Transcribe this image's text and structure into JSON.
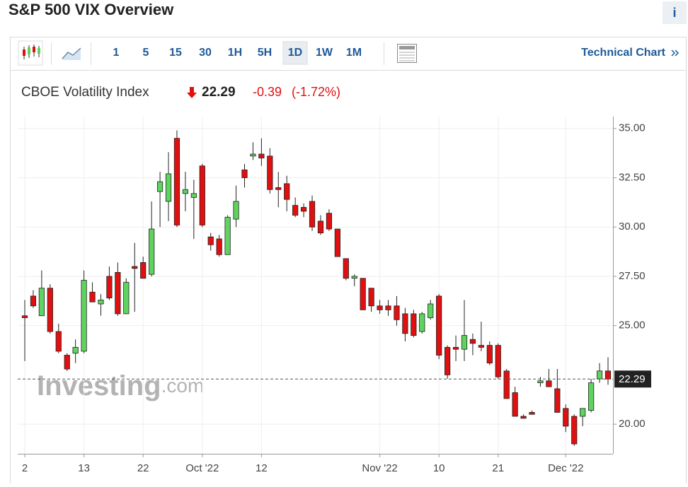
{
  "page": {
    "title": "S&P 500 VIX Overview",
    "info": "i",
    "intervals": [
      "1",
      "5",
      "15",
      "30",
      "1H",
      "5H",
      "1D",
      "1W",
      "1M"
    ],
    "active_interval": 6,
    "technical_link": "Technical Chart"
  },
  "quote": {
    "name": "CBOE Volatility Index",
    "price": 22.29,
    "change": -0.39,
    "change_pct": "(-1.72%)"
  },
  "chart_data": {
    "type": "candlestick",
    "watermark": {
      "brand": "Investing",
      "suffix": ".com"
    },
    "up_color": "#5fd35f",
    "down_color": "#e01010",
    "grid": true,
    "ylim": [
      18.5,
      35.6
    ],
    "yticks": [
      {
        "value": 20,
        "label": "20.00"
      },
      {
        "value": 25,
        "label": "25.00"
      },
      {
        "value": 27.5,
        "label": "27.50"
      },
      {
        "value": 30,
        "label": "30.00"
      },
      {
        "value": 32.5,
        "label": "32.50"
      },
      {
        "value": 35,
        "label": "35.00"
      }
    ],
    "categories": [
      "2",
      null,
      null,
      null,
      null,
      null,
      null,
      "13",
      null,
      null,
      null,
      null,
      null,
      null,
      "22",
      null,
      null,
      null,
      null,
      null,
      null,
      "Oct '22",
      null,
      null,
      null,
      null,
      null,
      null,
      "12",
      null,
      null,
      null,
      null,
      null,
      null,
      null,
      null,
      null,
      null,
      null,
      null,
      null,
      "Nov '22",
      null,
      null,
      null,
      null,
      null,
      null,
      "10",
      null,
      null,
      null,
      null,
      null,
      null,
      "21",
      null,
      null,
      null,
      null,
      null,
      null,
      null,
      "Dec '22",
      null,
      null,
      null,
      null,
      null
    ],
    "open": [
      25.5,
      26.5,
      25.5,
      26.9,
      24.7,
      23.5,
      23.6,
      23.7,
      26.7,
      26.1,
      27.5,
      27.7,
      25.6,
      28.0,
      28.2,
      27.6,
      31.8,
      31.3,
      34.5,
      31.7,
      31.5,
      33.1,
      29.5,
      29.4,
      28.6,
      30.4,
      32.9,
      33.6,
      33.7,
      33.6,
      32.0,
      32.2,
      31.1,
      31.0,
      31.3,
      30.3,
      30.7,
      29.9,
      28.4,
      27.4,
      27.4,
      26.9,
      26.0,
      26.0,
      26.0,
      25.6,
      25.6,
      24.7,
      25.4,
      26.5,
      23.9,
      23.9,
      23.8,
      24.3,
      24.0,
      24.0,
      24.0,
      22.7,
      21.6,
      20.4,
      20.6,
      22.1,
      22.2,
      21.8,
      20.8,
      20.4,
      20.4,
      20.7,
      22.3,
      22.7
    ],
    "high": [
      26.3,
      26.8,
      27.8,
      27.1,
      25.1,
      23.6,
      24.3,
      27.8,
      27.2,
      26.6,
      28.0,
      28.2,
      27.4,
      29.2,
      28.5,
      31.3,
      32.8,
      33.8,
      34.9,
      32.8,
      32.4,
      33.2,
      29.7,
      29.6,
      30.6,
      32.1,
      33.2,
      34.3,
      34.5,
      34.0,
      32.8,
      32.6,
      31.5,
      31.2,
      31.6,
      30.6,
      30.9,
      29.9,
      28.4,
      27.6,
      27.4,
      26.9,
      26.3,
      26.3,
      26.5,
      25.9,
      25.8,
      25.7,
      26.3,
      26.6,
      24.0,
      24.5,
      26.3,
      24.6,
      25.2,
      24.2,
      24.1,
      22.8,
      21.9,
      20.5,
      20.7,
      22.4,
      22.8,
      22.8,
      21.0,
      20.5,
      20.8,
      22.3,
      23.1,
      23.4
    ],
    "low": [
      23.2,
      25.9,
      25.5,
      24.6,
      23.6,
      22.7,
      23.1,
      23.6,
      26.2,
      25.5,
      26.3,
      25.5,
      25.6,
      25.7,
      27.4,
      27.5,
      30.0,
      30.3,
      30.0,
      30.8,
      29.4,
      30.0,
      28.8,
      28.5,
      28.6,
      30.0,
      32.0,
      33.4,
      33.1,
      31.7,
      31.0,
      30.8,
      30.5,
      30.5,
      29.8,
      29.6,
      29.8,
      28.5,
      27.3,
      27.0,
      25.8,
      25.7,
      25.6,
      25.5,
      25.0,
      24.2,
      24.4,
      24.6,
      25.3,
      23.3,
      22.3,
      23.2,
      23.2,
      23.5,
      23.7,
      23.0,
      22.3,
      21.3,
      20.4,
      20.3,
      20.5,
      21.9,
      21.9,
      20.6,
      19.6,
      18.9,
      19.9,
      20.6,
      22.1,
      22.0
    ],
    "close": [
      25.4,
      26.0,
      26.9,
      24.7,
      23.7,
      22.8,
      23.9,
      27.3,
      26.2,
      26.3,
      26.4,
      25.6,
      27.2,
      27.9,
      27.4,
      29.9,
      32.3,
      32.7,
      30.1,
      31.9,
      31.7,
      30.1,
      29.1,
      28.6,
      30.5,
      31.3,
      32.5,
      33.7,
      33.5,
      31.9,
      31.9,
      31.4,
      30.6,
      30.8,
      30.0,
      29.7,
      29.9,
      28.5,
      27.4,
      27.5,
      25.8,
      26.0,
      25.8,
      25.8,
      25.3,
      24.6,
      24.5,
      25.6,
      26.1,
      23.5,
      22.5,
      23.8,
      24.5,
      24.1,
      23.9,
      23.1,
      22.4,
      21.3,
      20.4,
      20.3,
      20.5,
      22.2,
      21.9,
      20.6,
      19.9,
      19.0,
      20.8,
      22.1,
      22.7,
      22.29
    ]
  }
}
